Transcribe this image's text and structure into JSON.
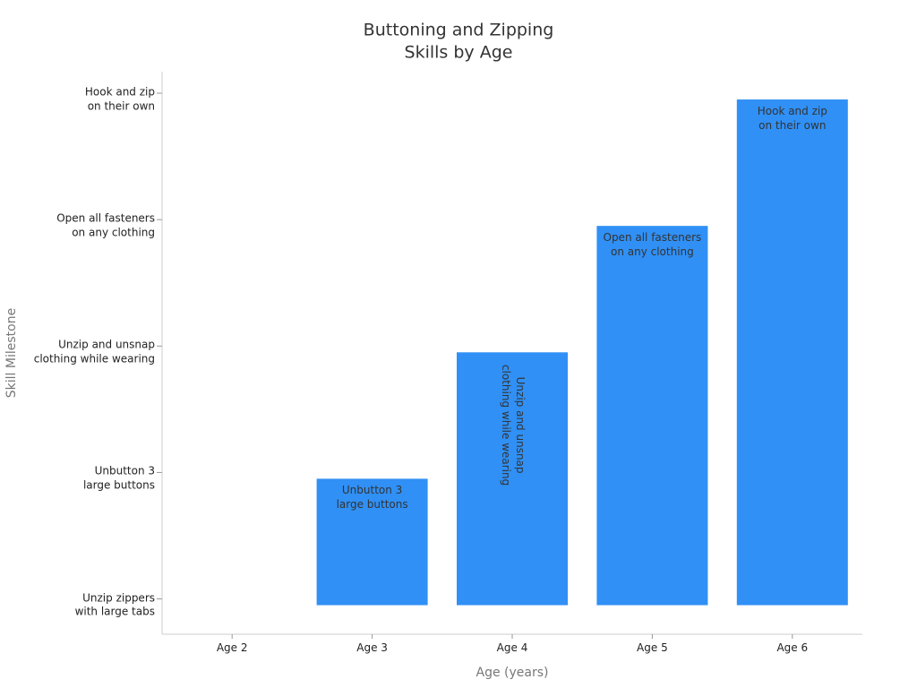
{
  "chart_data": {
    "type": "bar",
    "title": "Buttoning and Zipping\nSkills by Age",
    "x_label": "Age (years)",
    "y_label": "Skill Milestone",
    "categories": [
      "Age 2",
      "Age 3",
      "Age 4",
      "Age 5",
      "Age 6"
    ],
    "values": [
      0,
      1,
      2,
      3,
      4
    ],
    "value_labels": [
      null,
      "Unbutton 3\nlarge buttons",
      "Unzip and unsnap\nclothing while wearing",
      "Open all fasteners\non any clothing",
      "Hook and zip\non their own"
    ],
    "color": "#3090f5",
    "ylim": [
      -0.23,
      4.22
    ],
    "yticks": [
      {
        "value": 0,
        "label": "Unzip zippers\nwith large tabs"
      },
      {
        "value": 1,
        "label": "Unbutton 3\nlarge buttons"
      },
      {
        "value": 2,
        "label": "Unzip and unsnap\nclothing while wearing"
      },
      {
        "value": 3,
        "label": "Open all fasteners\non any clothing"
      },
      {
        "value": 4,
        "label": "Hook and zip\non their own"
      }
    ],
    "grid": false
  }
}
